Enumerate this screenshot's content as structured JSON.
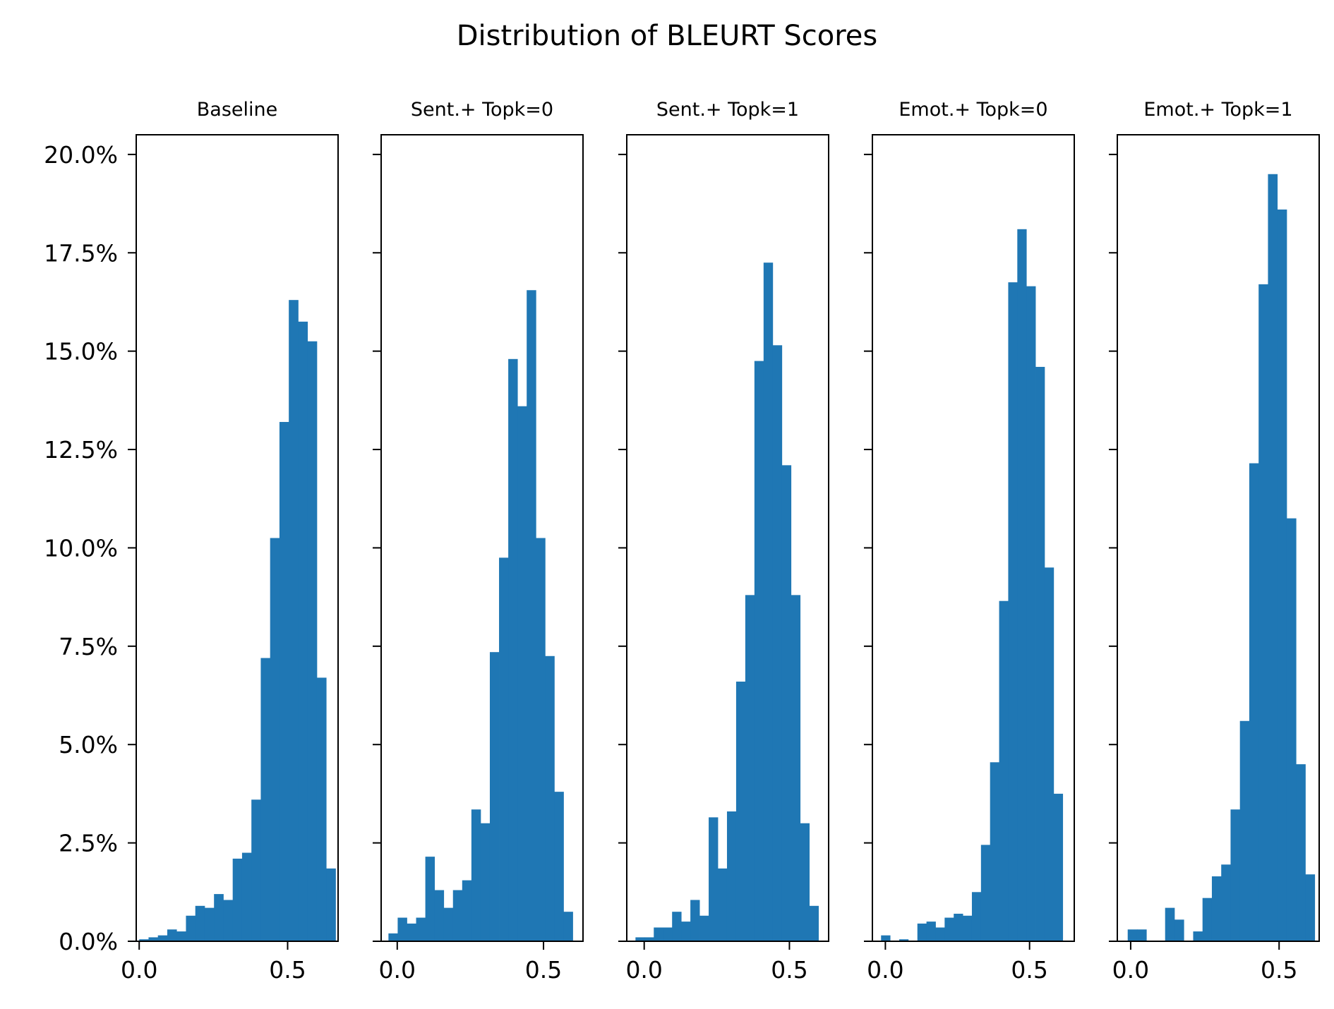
{
  "chart_data": {
    "type": "bar",
    "title": "Distribution of BLEURT Scores",
    "bar_color": "#1f77b4",
    "shared_y": true,
    "ylim": [
      0,
      20.5
    ],
    "yticks": [
      0,
      2.5,
      5,
      7.5,
      10,
      12.5,
      15,
      17.5,
      20
    ],
    "ytick_labels": [
      "0.0%",
      "2.5%",
      "5.0%",
      "7.5%",
      "10.0%",
      "12.5%",
      "15.0%",
      "17.5%",
      "20.0%"
    ],
    "xticks": [
      0,
      0.5
    ],
    "xtick_labels": [
      "0.0",
      "0.5"
    ],
    "panels": [
      {
        "title": "Baseline",
        "xlim": [
          -0.01,
          0.67
        ],
        "bin_start": 0.0,
        "bin_width": 0.0315,
        "values": [
          0.05,
          0.1,
          0.15,
          0.3,
          0.25,
          0.65,
          0.9,
          0.85,
          1.2,
          1.05,
          2.1,
          2.25,
          3.6,
          7.2,
          10.25,
          13.2,
          16.3,
          15.75,
          15.25,
          6.7,
          1.85
        ]
      },
      {
        "title": "Sent.+ Topk=0",
        "xlim": [
          -0.055,
          0.635
        ],
        "bin_start": -0.03,
        "bin_width": 0.0315,
        "values": [
          0.2,
          0.6,
          0.45,
          0.6,
          2.15,
          1.3,
          0.85,
          1.3,
          1.55,
          3.35,
          3.0,
          7.35,
          9.75,
          14.8,
          13.6,
          16.55,
          10.25,
          7.25,
          3.8,
          0.75
        ]
      },
      {
        "title": "Sent.+ Topk=1",
        "xlim": [
          -0.06,
          0.635
        ],
        "bin_start": -0.03,
        "bin_width": 0.0315,
        "values": [
          0.1,
          0.1,
          0.35,
          0.35,
          0.75,
          0.5,
          1.05,
          0.65,
          3.15,
          1.85,
          3.3,
          6.6,
          8.8,
          14.75,
          17.25,
          15.15,
          12.1,
          8.8,
          3.0,
          0.9
        ]
      },
      {
        "title": "Emot.+ Topk=0",
        "xlim": [
          -0.045,
          0.655
        ],
        "bin_start": -0.015,
        "bin_width": 0.0315,
        "values": [
          0.15,
          0.0,
          0.05,
          0.0,
          0.45,
          0.5,
          0.35,
          0.6,
          0.7,
          0.65,
          1.25,
          2.45,
          4.55,
          8.65,
          16.75,
          18.1,
          16.65,
          14.6,
          9.5,
          3.75
        ]
      },
      {
        "title": "Emot.+ Topk=1",
        "xlim": [
          -0.045,
          0.635
        ],
        "bin_start": -0.01,
        "bin_width": 0.0315,
        "values": [
          0.3,
          0.3,
          0.0,
          0.0,
          0.85,
          0.55,
          0.0,
          0.25,
          1.1,
          1.65,
          1.95,
          3.35,
          5.6,
          12.15,
          16.7,
          19.5,
          18.6,
          10.75,
          4.5,
          1.7
        ]
      }
    ]
  }
}
